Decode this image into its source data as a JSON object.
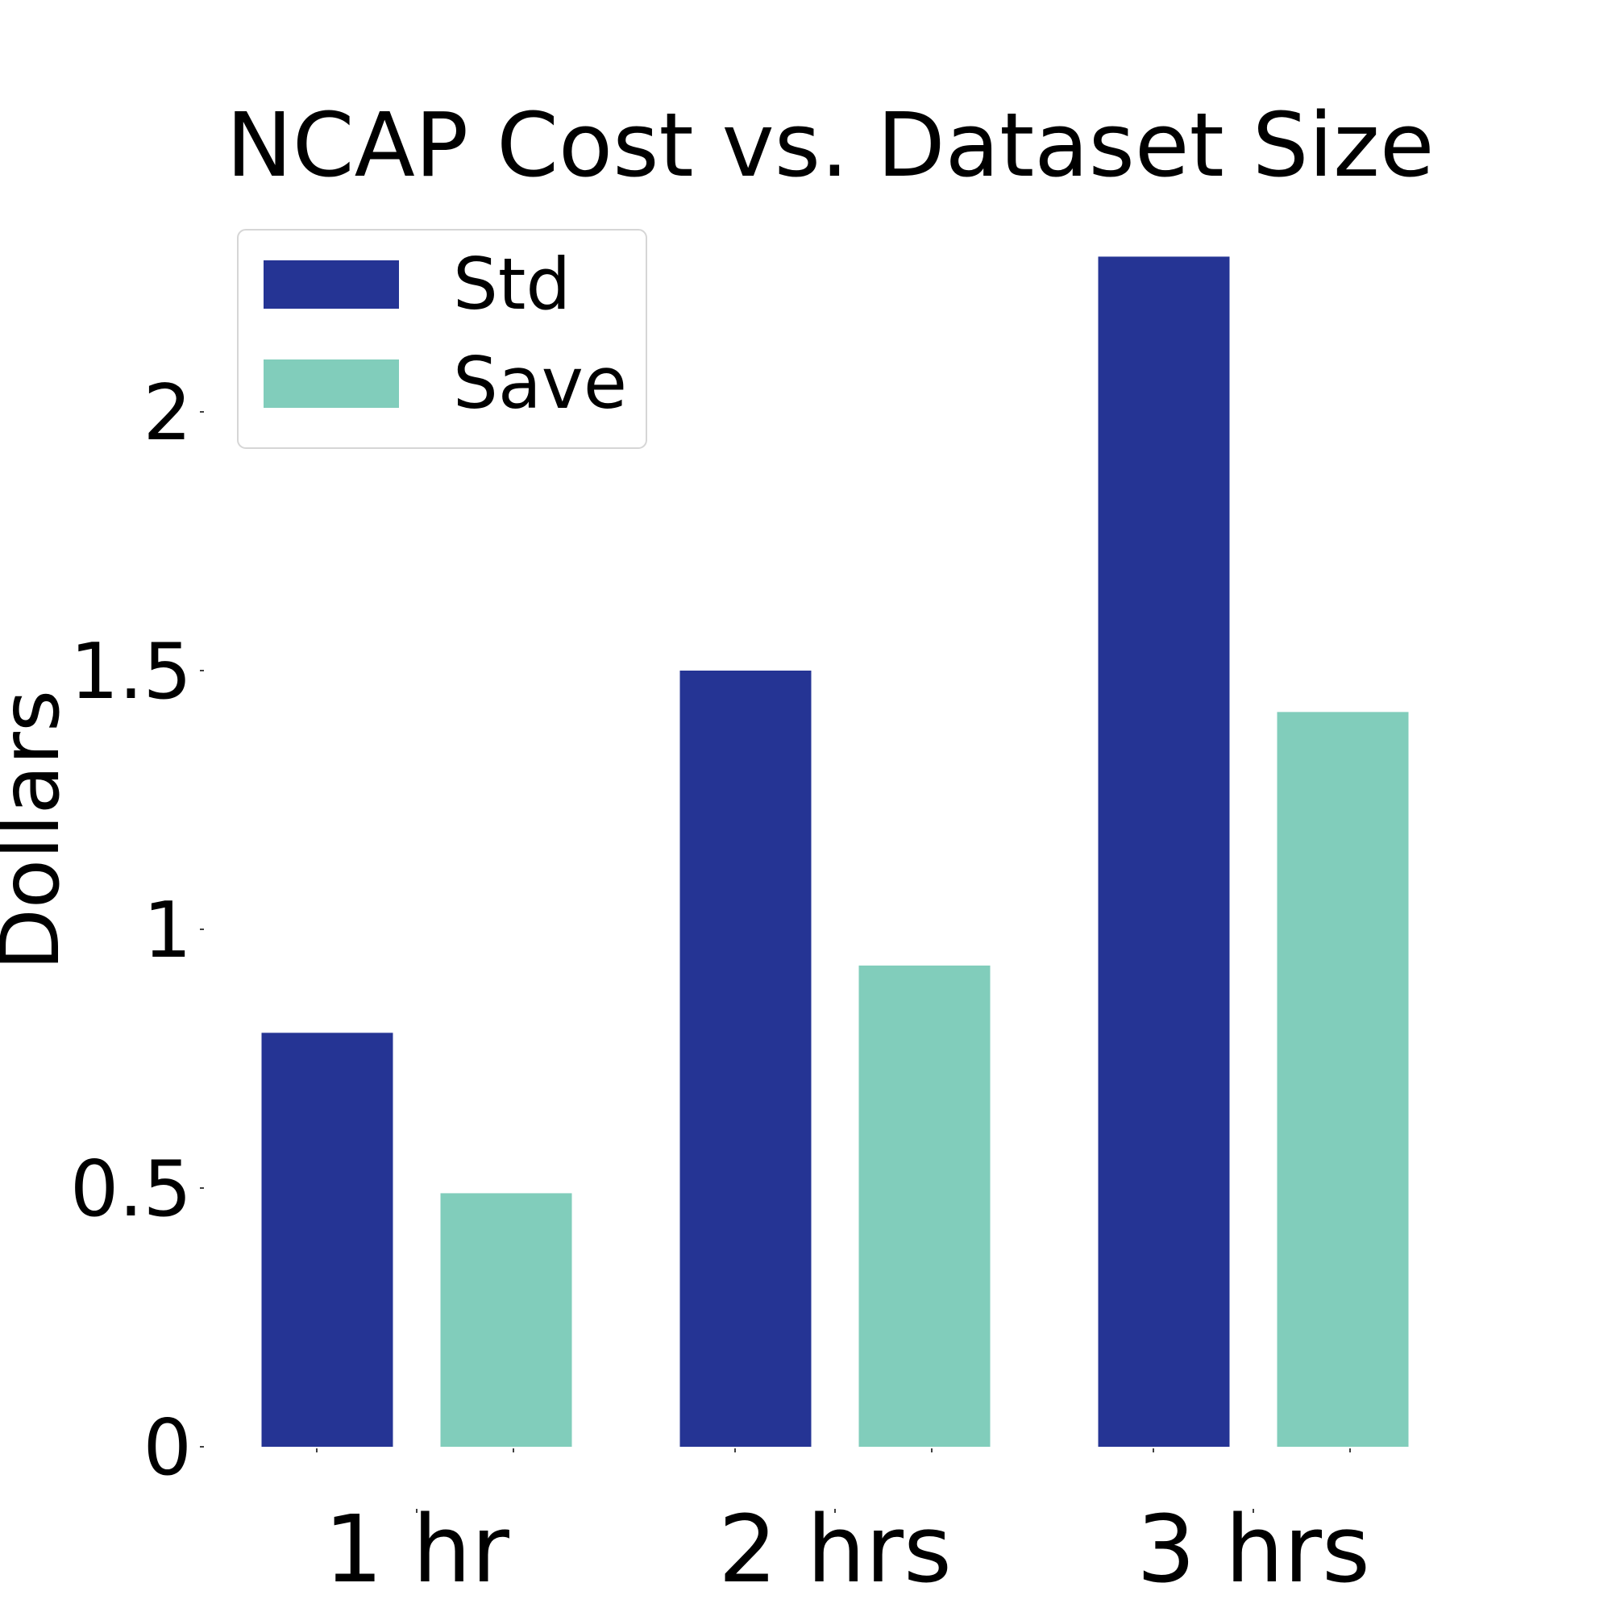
{
  "chart_data": {
    "type": "bar",
    "title": "NCAP Cost vs. Dataset Size",
    "xlabel": "",
    "ylabel": "Dollars",
    "categories": [
      "1 hr",
      "2 hrs",
      "3 hrs"
    ],
    "series": [
      {
        "name": "Std",
        "color": "#253494",
        "values": [
          0.8,
          1.5,
          2.3
        ]
      },
      {
        "name": "Save",
        "color": "#81cdbb",
        "values": [
          0.49,
          0.93,
          1.42
        ]
      }
    ],
    "yticks": [
      0,
      0.5,
      1,
      1.5,
      2
    ],
    "ytick_labels": [
      "0",
      "0.5",
      "1",
      "1.5",
      "2"
    ],
    "ylim": [
      0,
      2.6
    ],
    "grid": false,
    "legend": "top-left"
  }
}
